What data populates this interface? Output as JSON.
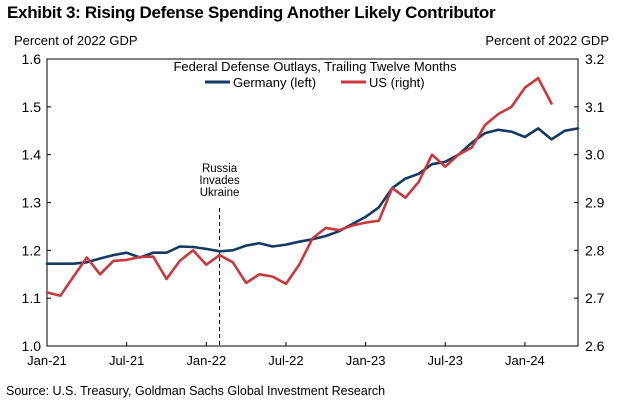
{
  "header": {
    "title": "Exhibit 3: Rising Defense Spending Another Likely Contributor"
  },
  "axes": {
    "left_unit": "Percent of 2022 GDP",
    "right_unit": "Percent of 2022 GDP"
  },
  "footer": {
    "source": "Source: U.S. Treasury, Goldman Sachs Global Investment Research"
  },
  "chart_data": {
    "type": "line",
    "title": "Federal Defense Outlays, Trailing Twelve Months",
    "x_labels": [
      "Jan-21",
      "Jul-21",
      "Jan-22",
      "Jul-22",
      "Jan-23",
      "Jul-23",
      "Jan-24"
    ],
    "x_start": "Jan-21",
    "left_axis": {
      "min": 1.0,
      "max": 1.6,
      "ticks": [
        "1.0",
        "1.1",
        "1.2",
        "1.3",
        "1.4",
        "1.5",
        "1.6"
      ]
    },
    "right_axis": {
      "min": 2.6,
      "max": 3.2,
      "ticks": [
        "2.6",
        "2.7",
        "2.8",
        "2.9",
        "3.0",
        "3.1",
        "3.2"
      ]
    },
    "legend_position": "top-center",
    "annotation": {
      "text": [
        "Russia",
        "Invades",
        "Ukraine"
      ],
      "x": "Feb-22"
    },
    "series": [
      {
        "name": "Germany (left)",
        "axis": "left",
        "color": "#143a62",
        "values": [
          1.172,
          1.172,
          1.172,
          1.175,
          1.183,
          1.19,
          1.195,
          1.185,
          1.195,
          1.195,
          1.208,
          1.207,
          1.203,
          1.198,
          1.2,
          1.21,
          1.215,
          1.208,
          1.212,
          1.218,
          1.223,
          1.23,
          1.24,
          1.255,
          1.27,
          1.29,
          1.33,
          1.35,
          1.36,
          1.38,
          1.385,
          1.4,
          1.425,
          1.445,
          1.452,
          1.448,
          1.437,
          1.455,
          1.432,
          1.45,
          1.455
        ]
      },
      {
        "name": "US (right)",
        "axis": "right",
        "color": "#c8383c",
        "values": [
          2.712,
          2.705,
          2.745,
          2.785,
          2.75,
          2.778,
          2.78,
          2.786,
          2.787,
          2.74,
          2.778,
          2.8,
          2.77,
          2.79,
          2.775,
          2.732,
          2.75,
          2.745,
          2.73,
          2.77,
          2.825,
          2.847,
          2.842,
          2.852,
          2.858,
          2.862,
          2.93,
          2.91,
          2.943,
          3.0,
          2.975,
          3.0,
          3.015,
          3.062,
          3.085,
          3.1,
          3.14,
          3.16,
          3.107
        ]
      }
    ]
  }
}
